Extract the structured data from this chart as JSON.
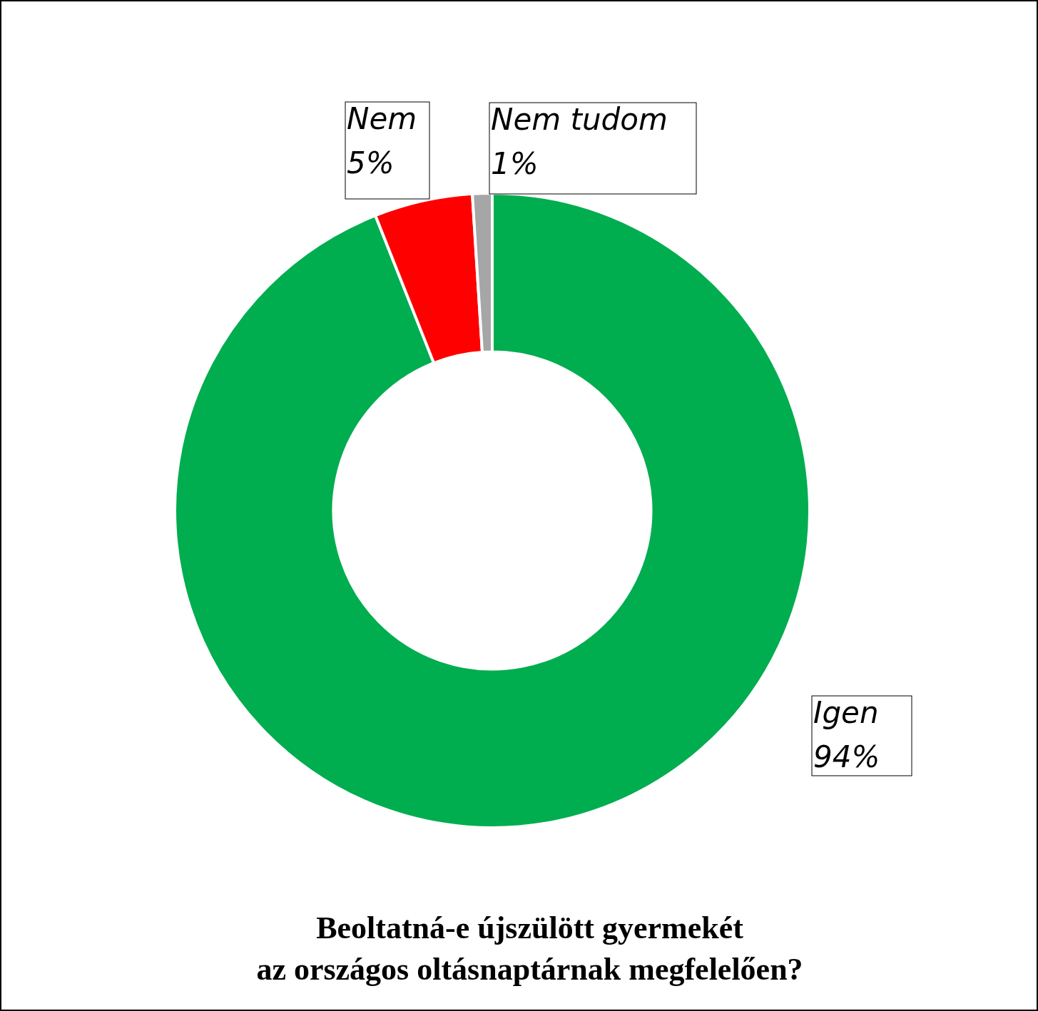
{
  "chart_data": {
    "type": "donut",
    "title": "Beoltatná-e újszülött gyermekét\naz országos oltásnaptárnak megfelelően?",
    "categories": [
      "Igen",
      "Nem",
      "Nem tudom"
    ],
    "values": [
      94,
      5,
      1
    ],
    "value_labels": [
      "94%",
      "5%",
      "1%"
    ],
    "colors": [
      "#00ad4f",
      "#ff0000",
      "#a6a6a6"
    ]
  }
}
